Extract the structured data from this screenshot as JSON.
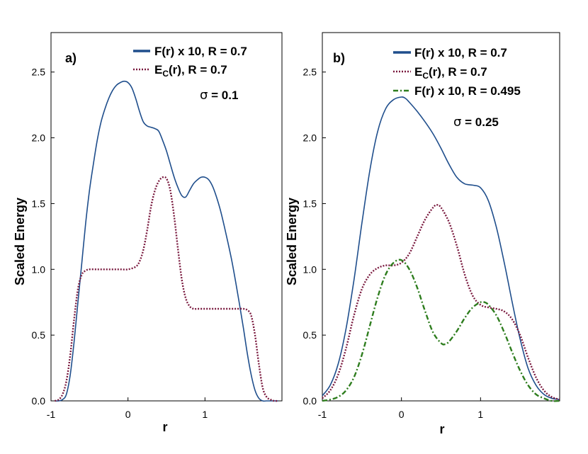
{
  "chart_data": [
    {
      "type": "line",
      "panel_label": "a)",
      "ylabel": "Scaled Energy",
      "xlabel": "r",
      "xlim": [
        -1,
        2
      ],
      "ylim": [
        0,
        2.8
      ],
      "xticks": [
        -1,
        0,
        1
      ],
      "xtick_labels": [
        "-1",
        "0",
        "1"
      ],
      "yticks": [
        0.0,
        0.5,
        1.0,
        1.5,
        2.0,
        2.5
      ],
      "ytick_labels": [
        "0.0",
        "0.5",
        "1.0",
        "1.5",
        "2.0",
        "2.5"
      ],
      "sigma_symbol": "σ",
      "sigma_value": " = 0.1",
      "legend_position": "top-right",
      "series": [
        {
          "name": "F(r) x 10, R = 0.7",
          "color": "#1f4e8c",
          "style": "solid",
          "x": [
            -0.95,
            -0.9,
            -0.85,
            -0.8,
            -0.75,
            -0.7,
            -0.65,
            -0.6,
            -0.55,
            -0.5,
            -0.45,
            -0.4,
            -0.35,
            -0.3,
            -0.25,
            -0.2,
            -0.15,
            -0.1,
            -0.05,
            0.0,
            0.05,
            0.1,
            0.15,
            0.2,
            0.25,
            0.3,
            0.35,
            0.4,
            0.45,
            0.5,
            0.55,
            0.6,
            0.65,
            0.7,
            0.75,
            0.8,
            0.85,
            0.9,
            0.95,
            1.0,
            1.05,
            1.1,
            1.15,
            1.2,
            1.25,
            1.3,
            1.35,
            1.4,
            1.45,
            1.5,
            1.55,
            1.6,
            1.65,
            1.7,
            1.75,
            1.8,
            1.85,
            1.9,
            1.95
          ],
          "y": [
            0.0,
            0.0,
            0.01,
            0.05,
            0.2,
            0.45,
            0.75,
            1.05,
            1.35,
            1.6,
            1.8,
            1.98,
            2.12,
            2.22,
            2.3,
            2.36,
            2.4,
            2.42,
            2.43,
            2.42,
            2.38,
            2.3,
            2.2,
            2.12,
            2.09,
            2.08,
            2.07,
            2.05,
            1.98,
            1.9,
            1.8,
            1.7,
            1.62,
            1.56,
            1.55,
            1.6,
            1.65,
            1.68,
            1.7,
            1.7,
            1.68,
            1.63,
            1.55,
            1.45,
            1.33,
            1.2,
            1.06,
            0.9,
            0.73,
            0.55,
            0.36,
            0.2,
            0.08,
            0.02,
            0.0,
            0.0,
            0.0,
            0.0,
            0.0
          ]
        },
        {
          "name": "E_C(r), R = 0.7",
          "color": "#7a1a3f",
          "style": "dotted",
          "x": [
            -0.95,
            -0.9,
            -0.85,
            -0.8,
            -0.75,
            -0.7,
            -0.65,
            -0.6,
            -0.55,
            -0.5,
            -0.4,
            -0.3,
            -0.2,
            -0.1,
            0.0,
            0.1,
            0.15,
            0.2,
            0.25,
            0.3,
            0.35,
            0.4,
            0.45,
            0.5,
            0.55,
            0.6,
            0.65,
            0.7,
            0.75,
            0.8,
            0.85,
            0.9,
            1.0,
            1.1,
            1.2,
            1.3,
            1.4,
            1.5,
            1.55,
            1.6,
            1.65,
            1.7,
            1.75,
            1.8,
            1.85,
            1.9,
            1.95
          ],
          "y": [
            0.0,
            0.01,
            0.05,
            0.15,
            0.35,
            0.62,
            0.85,
            0.96,
            0.99,
            1.0,
            1.0,
            1.0,
            1.0,
            1.0,
            1.0,
            1.02,
            1.06,
            1.15,
            1.3,
            1.48,
            1.6,
            1.67,
            1.7,
            1.69,
            1.6,
            1.4,
            1.15,
            0.92,
            0.78,
            0.72,
            0.7,
            0.7,
            0.7,
            0.7,
            0.7,
            0.7,
            0.7,
            0.7,
            0.69,
            0.65,
            0.5,
            0.28,
            0.1,
            0.03,
            0.01,
            0.0,
            0.0
          ]
        }
      ]
    },
    {
      "type": "line",
      "panel_label": "b)",
      "ylabel": "Scaled Energy",
      "xlabel": "r",
      "xlim": [
        -1,
        2
      ],
      "ylim": [
        0,
        2.8
      ],
      "xticks": [
        -1,
        0,
        1
      ],
      "xtick_labels": [
        "-1",
        "0",
        "1"
      ],
      "yticks": [
        0.0,
        0.5,
        1.0,
        1.5,
        2.0,
        2.5
      ],
      "ytick_labels": [
        "0.0",
        "0.5",
        "1.0",
        "1.5",
        "2.0",
        "2.5"
      ],
      "sigma_symbol": "σ",
      "sigma_value": " = 0.25",
      "legend_position": "top-right",
      "series": [
        {
          "name": "F(r) x 10, R = 0.7",
          "color": "#1f4e8c",
          "style": "solid",
          "x": [
            -1.0,
            -0.9,
            -0.8,
            -0.7,
            -0.6,
            -0.5,
            -0.4,
            -0.3,
            -0.2,
            -0.1,
            0.0,
            0.05,
            0.1,
            0.2,
            0.3,
            0.4,
            0.5,
            0.6,
            0.7,
            0.8,
            0.9,
            1.0,
            1.1,
            1.2,
            1.3,
            1.4,
            1.5,
            1.6,
            1.7,
            1.8,
            1.9,
            2.0
          ],
          "y": [
            0.04,
            0.12,
            0.28,
            0.55,
            0.92,
            1.35,
            1.75,
            2.05,
            2.22,
            2.29,
            2.31,
            2.3,
            2.27,
            2.2,
            2.12,
            2.03,
            1.92,
            1.8,
            1.7,
            1.65,
            1.64,
            1.62,
            1.52,
            1.32,
            1.05,
            0.75,
            0.47,
            0.25,
            0.12,
            0.05,
            0.02,
            0.01
          ]
        },
        {
          "name": "E_C(r), R = 0.7",
          "color": "#7a1a3f",
          "style": "dotted",
          "x": [
            -1.0,
            -0.9,
            -0.8,
            -0.7,
            -0.6,
            -0.5,
            -0.4,
            -0.3,
            -0.2,
            -0.1,
            0.0,
            0.1,
            0.2,
            0.3,
            0.4,
            0.45,
            0.5,
            0.6,
            0.7,
            0.8,
            0.9,
            1.0,
            1.1,
            1.2,
            1.3,
            1.4,
            1.5,
            1.6,
            1.7,
            1.8,
            1.9,
            2.0
          ],
          "y": [
            0.02,
            0.08,
            0.2,
            0.4,
            0.65,
            0.85,
            0.96,
            1.01,
            1.03,
            1.03,
            1.05,
            1.12,
            1.25,
            1.38,
            1.47,
            1.49,
            1.47,
            1.36,
            1.18,
            0.96,
            0.8,
            0.73,
            0.71,
            0.7,
            0.68,
            0.62,
            0.5,
            0.33,
            0.18,
            0.08,
            0.03,
            0.01
          ]
        },
        {
          "name": "F(r) x 10, R = 0.495",
          "color": "#2e7d1e",
          "style": "dashdot",
          "x": [
            -1.0,
            -0.9,
            -0.8,
            -0.7,
            -0.6,
            -0.5,
            -0.4,
            -0.3,
            -0.2,
            -0.1,
            0.0,
            0.1,
            0.2,
            0.3,
            0.4,
            0.5,
            0.55,
            0.6,
            0.7,
            0.8,
            0.9,
            1.0,
            1.05,
            1.1,
            1.2,
            1.3,
            1.4,
            1.5,
            1.6,
            1.7,
            1.8,
            1.9,
            2.0
          ],
          "y": [
            0.0,
            0.01,
            0.03,
            0.08,
            0.18,
            0.35,
            0.57,
            0.79,
            0.96,
            1.05,
            1.07,
            1.0,
            0.86,
            0.68,
            0.52,
            0.44,
            0.43,
            0.45,
            0.53,
            0.63,
            0.71,
            0.75,
            0.75,
            0.73,
            0.65,
            0.52,
            0.37,
            0.23,
            0.12,
            0.05,
            0.02,
            0.0,
            0.0
          ]
        }
      ]
    }
  ]
}
